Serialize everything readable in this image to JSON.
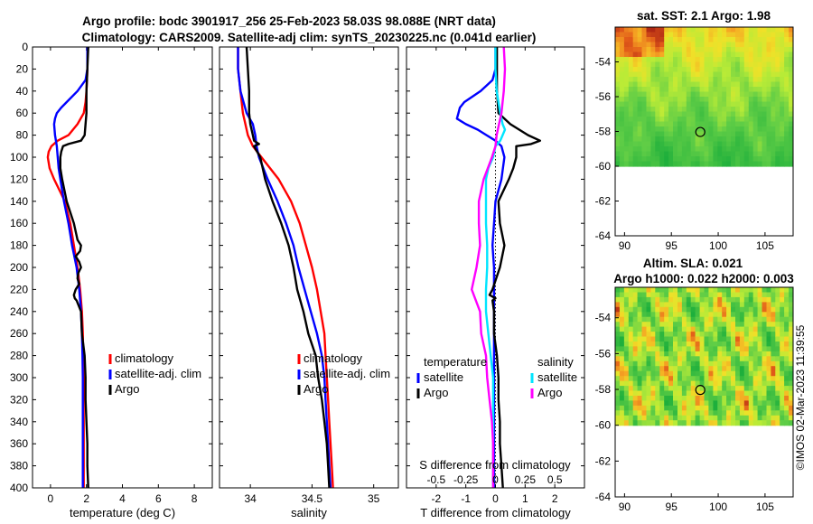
{
  "title": {
    "line1": "Argo profile: bodc 3901917_256 25-Feb-2023 58.03S 98.088E (NRT data)",
    "line2": "Climatology: CARS2009. Satellite-adj clim: synTS_20230225.nc (0.041d earlier)"
  },
  "colors": {
    "climatology": "#ff0000",
    "satellite": "#0000ff",
    "argo": "#000000",
    "sal_satellite": "#00e5ff",
    "sal_argo": "#ff00ff"
  },
  "depth_ticks": [
    "0",
    "20",
    "40",
    "60",
    "80",
    "100",
    "120",
    "140",
    "160",
    "180",
    "200",
    "220",
    "240",
    "260",
    "280",
    "300",
    "320",
    "340",
    "360",
    "380",
    "400"
  ],
  "chart_data": [
    {
      "id": "temperature",
      "type": "line",
      "xlabel": "temperature (deg C)",
      "ylabel": "",
      "xlim": [
        -1,
        9
      ],
      "ylim": [
        400,
        0
      ],
      "xticks": [
        "0",
        "2",
        "4",
        "6",
        "8"
      ],
      "xtick_values": [
        0,
        2,
        4,
        6,
        8
      ],
      "legend": [
        "climatology",
        "satellite-adj. clim",
        "Argo"
      ],
      "series": [
        {
          "name": "climatology",
          "color": "#ff0000",
          "depth": [
            0,
            20,
            40,
            50,
            60,
            70,
            80,
            85,
            90,
            95,
            100,
            110,
            120,
            140,
            160,
            180,
            200,
            220,
            240,
            260,
            280,
            300,
            320,
            340,
            360,
            380,
            400
          ],
          "values": [
            2.05,
            2.05,
            2.0,
            1.95,
            1.85,
            1.5,
            1.0,
            0.4,
            0.05,
            -0.1,
            -0.15,
            -0.05,
            0.2,
            0.8,
            1.1,
            1.3,
            1.5,
            1.65,
            1.75,
            1.8,
            1.82,
            1.83,
            1.84,
            1.85,
            1.85,
            1.85,
            1.85
          ]
        },
        {
          "name": "satellite-adj. clim",
          "color": "#0000ff",
          "depth": [
            0,
            20,
            30,
            40,
            50,
            55,
            60,
            65,
            70,
            80,
            90,
            100,
            110,
            120,
            140,
            160,
            180,
            200,
            220,
            240,
            260,
            280,
            300,
            320,
            340,
            360,
            380,
            400
          ],
          "values": [
            2.05,
            2.05,
            1.95,
            1.5,
            0.9,
            0.6,
            0.35,
            0.25,
            0.2,
            0.25,
            0.35,
            0.4,
            0.45,
            0.55,
            0.75,
            1.0,
            1.2,
            1.45,
            1.6,
            1.7,
            1.75,
            1.78,
            1.8,
            1.8,
            1.8,
            1.8,
            1.8,
            1.8
          ]
        },
        {
          "name": "Argo",
          "color": "#000000",
          "depth": [
            0,
            20,
            40,
            60,
            70,
            80,
            85,
            88,
            90,
            95,
            100,
            110,
            120,
            140,
            160,
            175,
            180,
            185,
            190,
            195,
            200,
            205,
            210,
            215,
            220,
            225,
            228,
            230,
            240,
            260,
            280,
            300,
            320,
            340,
            360,
            380,
            400
          ],
          "values": [
            2.1,
            2.05,
            2.0,
            2.0,
            1.95,
            1.9,
            1.7,
            1.0,
            0.7,
            0.6,
            0.55,
            0.55,
            0.65,
            0.9,
            1.3,
            1.5,
            1.7,
            1.65,
            1.4,
            1.6,
            1.7,
            1.55,
            1.5,
            1.6,
            1.4,
            1.3,
            1.35,
            1.45,
            1.7,
            1.75,
            1.9,
            1.95,
            1.95,
            2.0,
            2.05,
            2.05,
            2.1
          ]
        }
      ]
    },
    {
      "id": "salinity",
      "type": "line",
      "xlabel": "salinity",
      "ylabel": "",
      "xlim": [
        33.75,
        35.2
      ],
      "ylim": [
        400,
        0
      ],
      "xticks": [
        "34",
        "34.5",
        "35"
      ],
      "xtick_values": [
        34,
        34.5,
        35
      ],
      "legend": [
        "climatology",
        "satellite-adj. clim",
        "Argo"
      ],
      "series": [
        {
          "name": "climatology",
          "color": "#ff0000",
          "depth": [
            0,
            20,
            40,
            60,
            80,
            90,
            100,
            120,
            140,
            160,
            180,
            200,
            220,
            240,
            260,
            280,
            300,
            320,
            340,
            360,
            380,
            400
          ],
          "values": [
            33.9,
            33.9,
            33.92,
            33.94,
            33.98,
            34.02,
            34.09,
            34.23,
            34.33,
            34.4,
            34.45,
            34.5,
            34.54,
            34.57,
            34.6,
            34.61,
            34.62,
            34.63,
            34.64,
            34.65,
            34.66,
            34.67
          ]
        },
        {
          "name": "satellite-adj. clim",
          "color": "#0000ff",
          "depth": [
            0,
            20,
            40,
            60,
            70,
            80,
            90,
            100,
            120,
            140,
            160,
            180,
            200,
            220,
            240,
            260,
            280,
            300,
            320,
            340,
            360,
            380,
            400
          ],
          "values": [
            33.9,
            33.9,
            33.92,
            33.97,
            34.02,
            34.04,
            34.05,
            34.07,
            34.14,
            34.22,
            34.29,
            34.35,
            34.39,
            34.44,
            34.49,
            34.54,
            34.58,
            34.6,
            34.61,
            34.62,
            34.63,
            34.64,
            34.65
          ]
        },
        {
          "name": "Argo",
          "color": "#000000",
          "depth": [
            0,
            20,
            40,
            60,
            70,
            80,
            85,
            88,
            90,
            100,
            120,
            140,
            160,
            180,
            200,
            220,
            240,
            260,
            280,
            300,
            320,
            340,
            360,
            380,
            400
          ],
          "values": [
            33.97,
            33.98,
            33.99,
            33.99,
            34.0,
            34.02,
            34.03,
            34.07,
            34.03,
            34.08,
            34.12,
            34.18,
            34.25,
            34.31,
            34.35,
            34.38,
            34.43,
            34.47,
            34.53,
            34.55,
            34.58,
            34.6,
            34.62,
            34.63,
            34.64
          ]
        }
      ]
    },
    {
      "id": "difference",
      "type": "line",
      "xlabel": "T difference from climatology",
      "ylabel": "",
      "xlim": [
        -3,
        3
      ],
      "ylim": [
        400,
        0
      ],
      "xticks": [
        "-2",
        "-1",
        "0",
        "1",
        "2"
      ],
      "xtick_values": [
        -2,
        -1,
        0,
        1,
        2
      ],
      "top_label": "S difference from climatology",
      "top_ticks": [
        "-0.5",
        "-0.25",
        "0",
        "0.25",
        "0.5"
      ],
      "top_tick_values": [
        -0.5,
        -0.25,
        0,
        0.25,
        0.5
      ],
      "legend_temperature": [
        "temperature",
        "satellite",
        "Argo"
      ],
      "legend_salinity": [
        "salinity",
        "satellite",
        "Argo"
      ],
      "series": [
        {
          "name": "temperature satellite",
          "color": "#0000ff",
          "depth": [
            0,
            20,
            30,
            40,
            50,
            55,
            60,
            65,
            70,
            75,
            80,
            85,
            90,
            100,
            120,
            140,
            160,
            180,
            200,
            220,
            240,
            260,
            280,
            300,
            320,
            340,
            360,
            380,
            400
          ],
          "values": [
            0.0,
            0.0,
            -0.1,
            -0.5,
            -1.05,
            -1.2,
            -1.25,
            -1.3,
            -1.0,
            -0.6,
            -0.3,
            0.0,
            0.2,
            0.3,
            0.2,
            0.0,
            -0.05,
            -0.1,
            -0.05,
            -0.05,
            -0.05,
            -0.05,
            -0.05,
            -0.05,
            -0.05,
            -0.05,
            -0.05,
            -0.05,
            -0.05
          ]
        },
        {
          "name": "temperature Argo",
          "color": "#000000",
          "depth": [
            0,
            20,
            40,
            60,
            70,
            80,
            85,
            88,
            90,
            95,
            100,
            110,
            120,
            140,
            160,
            180,
            200,
            220,
            225,
            228,
            230,
            240,
            260,
            280,
            300,
            320,
            340,
            360,
            380,
            400
          ],
          "values": [
            0.05,
            0.05,
            0.05,
            0.1,
            0.5,
            1.1,
            1.5,
            1.2,
            0.7,
            0.7,
            0.7,
            0.6,
            0.45,
            0.1,
            0.15,
            0.3,
            0.15,
            -0.1,
            -0.2,
            0.0,
            -0.1,
            -0.05,
            -0.05,
            0.05,
            0.1,
            0.1,
            0.15,
            0.15,
            0.2,
            0.25
          ]
        },
        {
          "name": "salinity satellite",
          "color": "#00e5ff",
          "depth": [
            0,
            20,
            40,
            60,
            70,
            75,
            80,
            85,
            90,
            100,
            110,
            120,
            140,
            160,
            180,
            200,
            220,
            240,
            260,
            280,
            300,
            320,
            340,
            360,
            380,
            400
          ],
          "values": [
            0.0,
            0.0,
            0.01,
            0.04,
            0.06,
            0.08,
            0.06,
            0.04,
            0.0,
            -0.02,
            -0.06,
            -0.08,
            -0.08,
            -0.08,
            -0.07,
            -0.07,
            -0.08,
            -0.08,
            -0.06,
            -0.04,
            -0.02,
            -0.02,
            -0.02,
            -0.02,
            -0.02,
            -0.02
          ]
        },
        {
          "name": "salinity Argo",
          "color": "#ff00ff",
          "depth": [
            0,
            20,
            40,
            60,
            70,
            80,
            90,
            100,
            120,
            140,
            160,
            180,
            200,
            220,
            240,
            260,
            280,
            300,
            320,
            340,
            360,
            380,
            400
          ],
          "values": [
            0.07,
            0.08,
            0.07,
            0.05,
            0.03,
            0.01,
            0.0,
            -0.03,
            -0.1,
            -0.14,
            -0.14,
            -0.13,
            -0.16,
            -0.2,
            -0.13,
            -0.12,
            -0.08,
            -0.07,
            -0.05,
            -0.03,
            -0.02,
            -0.02,
            -0.02
          ]
        }
      ]
    },
    {
      "id": "sst_map",
      "type": "heatmap",
      "title": "sat. SST: 2.1 Argo: 1.98",
      "xlim": [
        89,
        108
      ],
      "ylim": [
        -64,
        -52
      ],
      "xticks": [
        "90",
        "95",
        "100",
        "105"
      ],
      "xtick_values": [
        90,
        95,
        100,
        105
      ],
      "yticks": [
        "-54",
        "-56",
        "-58",
        "-60",
        "-62",
        "-64"
      ],
      "ytick_values": [
        -54,
        -56,
        -58,
        -60,
        -62,
        -64
      ],
      "data_extent_y": [
        -60,
        -52
      ],
      "argo_position": {
        "lon": 98.088,
        "lat": -58.03
      }
    },
    {
      "id": "sla_map",
      "type": "heatmap",
      "title_line1": "Altim. SLA: 0.021",
      "title_line2": "Argo h1000: 0.022 h2000: 0.003",
      "xlim": [
        89,
        108
      ],
      "ylim": [
        -64,
        -52.3
      ],
      "xticks": [
        "90",
        "95",
        "100",
        "105"
      ],
      "xtick_values": [
        90,
        95,
        100,
        105
      ],
      "yticks": [
        "-54",
        "-56",
        "-58",
        "-60",
        "-62",
        "-64"
      ],
      "ytick_values": [
        -54,
        -56,
        -58,
        -60,
        -62,
        -64
      ],
      "data_extent_y": [
        -60,
        -52.3
      ],
      "argo_position": {
        "lon": 98.088,
        "lat": -58.03
      }
    }
  ],
  "copyright": "©IMOS 02-Mar-2023 11:39:55"
}
